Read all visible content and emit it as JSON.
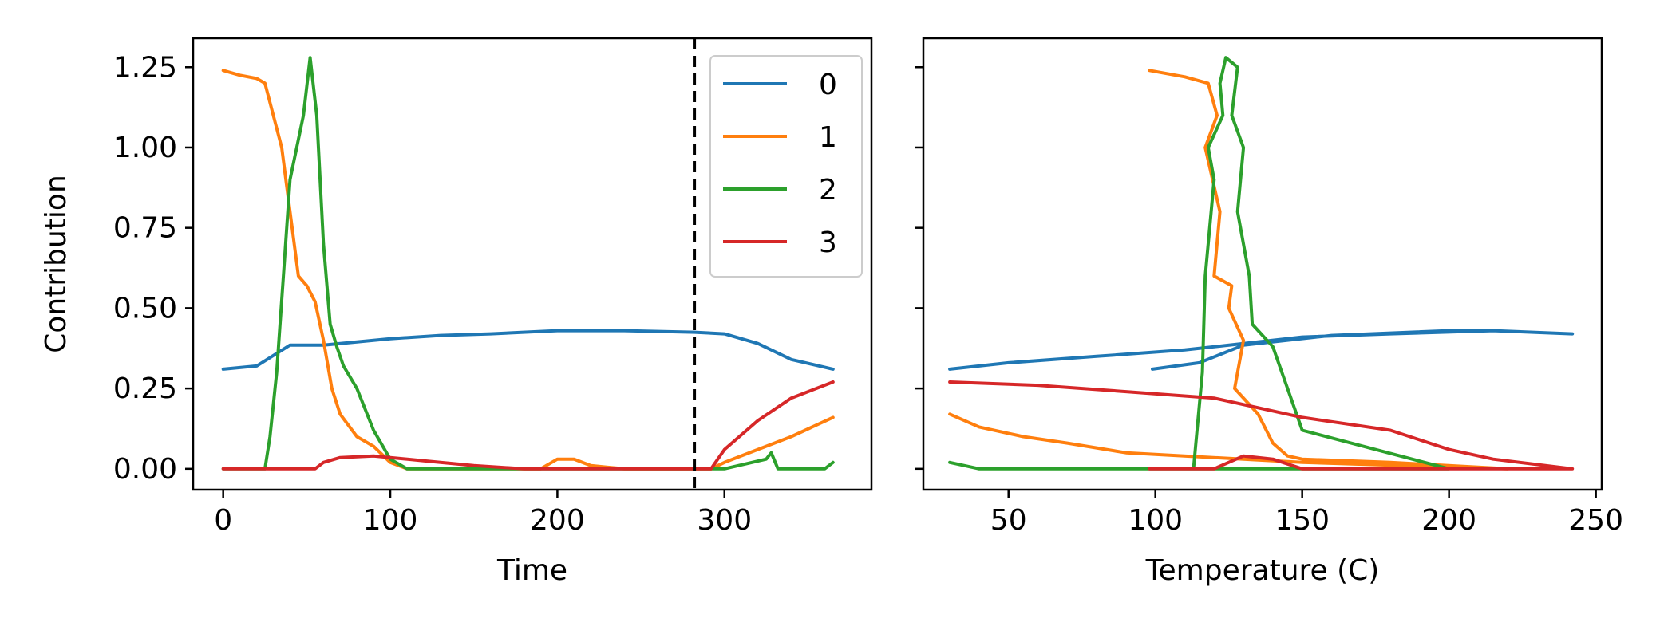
{
  "colors": {
    "s0": "#1f77b4",
    "s1": "#ff7f0e",
    "s2": "#2ca02c",
    "s3": "#d62728",
    "axis": "#000000",
    "vline": "#000000"
  },
  "chart_data": [
    {
      "type": "line",
      "title": "",
      "xlabel": "Time",
      "ylabel": "Contribution",
      "xlim": [
        -18,
        388
      ],
      "ylim": [
        -0.065,
        1.34
      ],
      "xticks": [
        0,
        100,
        200,
        300
      ],
      "xtick_labels": [
        "0",
        "100",
        "200",
        "300"
      ],
      "yticks": [
        0.0,
        0.25,
        0.5,
        0.75,
        1.0,
        1.25
      ],
      "ytick_labels": [
        "0.00",
        "0.25",
        "0.50",
        "0.75",
        "1.00",
        "1.25"
      ],
      "vline": {
        "x": 282,
        "style": "dashed"
      },
      "legend": {
        "position": "upper-right",
        "entries": [
          "0",
          "1",
          "2",
          "3"
        ]
      },
      "series": [
        {
          "name": "0",
          "color_key": "s0",
          "x": [
            0,
            20,
            40,
            60,
            80,
            100,
            130,
            160,
            200,
            240,
            282,
            300,
            320,
            340,
            365
          ],
          "y": [
            0.31,
            0.32,
            0.385,
            0.385,
            0.395,
            0.405,
            0.415,
            0.42,
            0.43,
            0.43,
            0.425,
            0.42,
            0.39,
            0.34,
            0.31
          ]
        },
        {
          "name": "1",
          "color_key": "s1",
          "x": [
            0,
            10,
            20,
            25,
            30,
            35,
            40,
            45,
            50,
            55,
            60,
            65,
            70,
            80,
            90,
            100,
            110,
            150,
            190,
            200,
            210,
            220,
            240,
            292,
            300,
            320,
            340,
            365
          ],
          "y": [
            1.24,
            1.225,
            1.215,
            1.2,
            1.1,
            1.0,
            0.8,
            0.6,
            0.57,
            0.52,
            0.4,
            0.25,
            0.17,
            0.1,
            0.07,
            0.02,
            0.0,
            0.0,
            0.0,
            0.03,
            0.03,
            0.01,
            0.0,
            0.0,
            0.02,
            0.06,
            0.1,
            0.16
          ]
        },
        {
          "name": "2",
          "color_key": "s2",
          "x": [
            0,
            25,
            28,
            32,
            36,
            40,
            44,
            48,
            52,
            56,
            60,
            64,
            68,
            72,
            80,
            90,
            100,
            110,
            150,
            200,
            220,
            282,
            300,
            325,
            328,
            332,
            335,
            360,
            365
          ],
          "y": [
            0.0,
            0.0,
            0.1,
            0.3,
            0.6,
            0.9,
            1.0,
            1.1,
            1.28,
            1.1,
            0.7,
            0.45,
            0.38,
            0.32,
            0.25,
            0.12,
            0.03,
            0.0,
            0.0,
            0.0,
            0.0,
            0.0,
            0.0,
            0.03,
            0.05,
            0.0,
            0.0,
            0.0,
            0.02
          ]
        },
        {
          "name": "3",
          "color_key": "s3",
          "x": [
            0,
            10,
            20,
            55,
            60,
            70,
            90,
            100,
            120,
            150,
            180,
            220,
            282,
            292,
            300,
            320,
            340,
            365
          ],
          "y": [
            0.0,
            0.0,
            0.0,
            0.0,
            0.02,
            0.035,
            0.04,
            0.035,
            0.025,
            0.01,
            0.0,
            0.0,
            0.0,
            0.0,
            0.06,
            0.15,
            0.22,
            0.27
          ]
        }
      ]
    },
    {
      "type": "line",
      "title": "",
      "xlabel": "Temperature (C)",
      "ylabel": "",
      "xlim": [
        21,
        252
      ],
      "ylim": [
        -0.065,
        1.34
      ],
      "xticks": [
        50,
        100,
        150,
        200,
        250
      ],
      "xtick_labels": [
        "50",
        "100",
        "150",
        "200",
        "250"
      ],
      "yticks": [
        0.0,
        0.25,
        0.5,
        0.75,
        1.0,
        1.25
      ],
      "ytick_labels": [],
      "series": [
        {
          "name": "0",
          "color_key": "s0",
          "x": [
            99,
            115,
            130,
            160,
            200,
            215,
            242,
            215,
            180,
            150,
            130,
            110,
            80,
            50,
            30
          ],
          "y": [
            0.31,
            0.33,
            0.385,
            0.415,
            0.43,
            0.43,
            0.42,
            0.43,
            0.42,
            0.41,
            0.39,
            0.37,
            0.35,
            0.33,
            0.31
          ]
        },
        {
          "name": "1",
          "color_key": "s1",
          "x": [
            98,
            110,
            118,
            121,
            117,
            122,
            120,
            126,
            125,
            130,
            127,
            135,
            140,
            145,
            150,
            180,
            220,
            150,
            90,
            70,
            55,
            40,
            30
          ],
          "y": [
            1.24,
            1.22,
            1.2,
            1.1,
            1.0,
            0.8,
            0.6,
            0.57,
            0.5,
            0.4,
            0.25,
            0.17,
            0.08,
            0.04,
            0.03,
            0.02,
            0.0,
            0.02,
            0.05,
            0.08,
            0.1,
            0.13,
            0.17
          ]
        },
        {
          "name": "2",
          "color_key": "s2",
          "x": [
            113,
            114,
            116,
            117,
            120,
            118,
            123,
            122,
            124,
            128,
            126,
            130,
            128,
            132,
            133,
            140,
            145,
            150,
            200,
            140,
            110,
            80,
            60,
            40,
            30
          ],
          "y": [
            0.0,
            0.1,
            0.3,
            0.6,
            0.9,
            1.0,
            1.1,
            1.2,
            1.28,
            1.25,
            1.1,
            1.0,
            0.8,
            0.6,
            0.45,
            0.38,
            0.25,
            0.12,
            0.0,
            0.0,
            0.0,
            0.0,
            0.0,
            0.0,
            0.02
          ]
        },
        {
          "name": "3",
          "color_key": "s3",
          "x": [
            30,
            60,
            90,
            120,
            150,
            180,
            200,
            215,
            242,
            180,
            150,
            140,
            130,
            120,
            98
          ],
          "y": [
            0.27,
            0.26,
            0.24,
            0.22,
            0.16,
            0.12,
            0.06,
            0.03,
            0.0,
            0.0,
            0.0,
            0.03,
            0.04,
            0.0,
            0.0
          ]
        }
      ]
    }
  ]
}
